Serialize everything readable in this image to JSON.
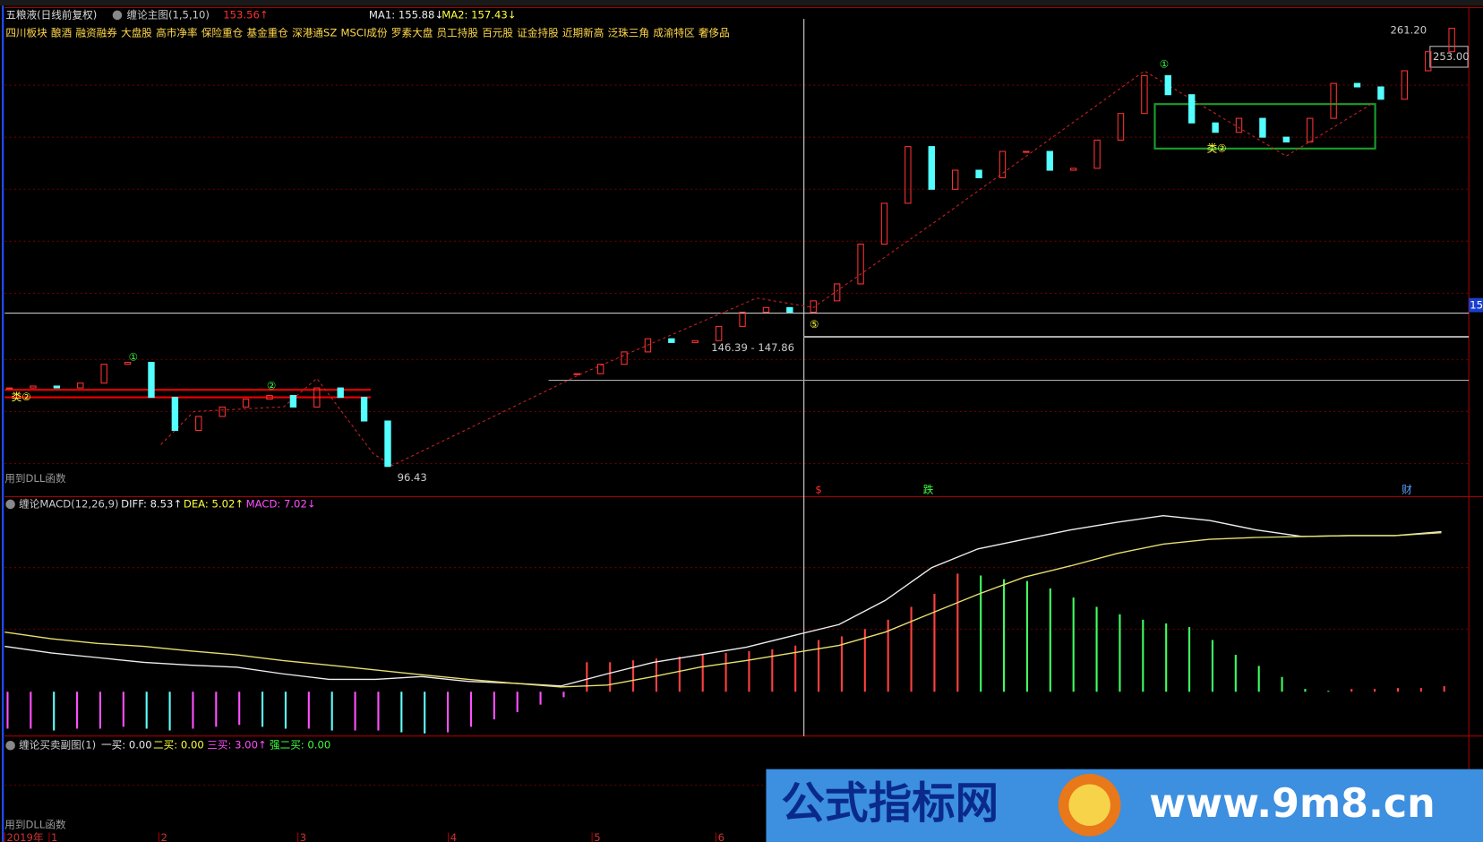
{
  "header": {
    "stock": "五粮液(日线前复权)",
    "indicator": "缠论主图(1,5,10)",
    "price": "153.56↑",
    "ma1": "MA1: 155.88↓",
    "ma2": "MA2: 157.43↓"
  },
  "tags": [
    "四川板块",
    "酿酒",
    "融资融券",
    "大盘股",
    "高市净率",
    "保险重仓",
    "基金重仓",
    "深港通SZ",
    "MSCI成份",
    "罗素大盘",
    "员工持股",
    "百元股",
    "证金持股",
    "近期新高",
    "泛珠三角",
    "成渝特区",
    "奢侈品"
  ],
  "price_pane": {
    "closes": [
      128.1,
      128.8,
      128.1,
      129.9,
      136.9,
      137.6,
      124.6,
      112.3,
      117.5,
      121.0,
      123.9,
      125.3,
      121.0,
      128.1,
      124.6,
      115.8,
      98.9,
      null,
      null,
      null,
      null,
      null,
      null,
      null,
      133.4,
      136.9,
      141.5,
      146.4,
      145.0,
      145.7,
      151.0,
      156.3,
      158.0,
      156.3,
      160.5,
      166.8,
      181.6,
      196.8,
      217.9,
      202.0,
      209.1,
      206.3,
      216.1,
      216.1,
      209.1,
      209.8,
      220.3,
      230.2,
      244.3,
      237.2,
      226.7,
      223.2,
      228.4,
      221.4,
      219.6,
      228.4,
      241.4,
      240.1,
      235.5,
      246.1,
      253.2,
      261.9
    ],
    "ylim": [
      88.7,
      268.9
    ],
    "labels": {
      "high": "261.20",
      "last": "253.00",
      "range": "146.39 - 147.86",
      "low": "96.43",
      "cursor": "15"
    },
    "events": [
      "$",
      "跌",
      "财"
    ],
    "markers": [
      "①",
      "②",
      "⑤",
      "①",
      "类②",
      "类②"
    ],
    "dll_note": "用到DLL函数"
  },
  "macd_pane": {
    "title": "缠论MACD(12,26,9)",
    "diff_label": "DIFF: 8.53↑",
    "dea_label": "DEA: 5.02↑",
    "macd_label": "MACD: 7.02↓",
    "diff": [
      2.46,
      2.1,
      1.85,
      1.59,
      1.44,
      1.33,
      0.97,
      0.67,
      0.67,
      0.82,
      0.56,
      0.46,
      0.31,
      0.97,
      1.59,
      2.0,
      2.41,
      3.03,
      3.64,
      4.95,
      6.72,
      7.74,
      8.26,
      8.77,
      9.18,
      9.54,
      9.28,
      8.77,
      8.41,
      8.46,
      8.46,
      8.67
    ],
    "dea": [
      3.23,
      2.87,
      2.62,
      2.46,
      2.21,
      2.0,
      1.69,
      1.44,
      1.18,
      0.92,
      0.67,
      0.46,
      0.26,
      0.36,
      0.82,
      1.33,
      1.69,
      2.1,
      2.51,
      3.23,
      4.26,
      5.28,
      6.21,
      6.82,
      7.49,
      8.0,
      8.26,
      8.36,
      8.41,
      8.46,
      8.46,
      8.62
    ],
    "macd": [
      -2.0,
      -2.0,
      -2.1,
      -2.0,
      -2.0,
      -1.9,
      -2.0,
      -2.1,
      -2.0,
      -1.9,
      -1.8,
      -1.9,
      -2.0,
      -2.0,
      -2.1,
      -2.1,
      -2.1,
      -2.2,
      -2.26,
      -2.2,
      -1.9,
      -1.5,
      -1.1,
      -0.7,
      -0.3,
      1.6,
      1.6,
      1.7,
      1.8,
      1.9,
      2.0,
      2.1,
      2.2,
      2.3,
      2.5,
      2.8,
      3.0,
      3.4,
      3.9,
      4.6,
      5.3,
      6.4,
      6.3,
      6.1,
      6.0,
      5.6,
      5.1,
      4.6,
      4.2,
      3.9,
      3.7,
      3.5,
      2.8,
      2.0,
      1.4,
      0.8,
      0.15,
      0.05,
      0.15,
      0.15,
      0.2,
      0.2,
      0.3
    ],
    "ylim": [
      -2.4,
      9.8
    ]
  },
  "sub_pane": {
    "title": "缠论买卖副图(1)",
    "labels": [
      "一买: 0.00",
      "二买: 0.00",
      "三买: 3.00↑",
      "强二买: 0.00"
    ],
    "dll_note": "用到DLL函数"
  },
  "time_axis": [
    "2019年",
    "1",
    "2",
    "3",
    "4",
    "5",
    "6"
  ],
  "watermark": {
    "name": "公式指标网",
    "url": "www.9m8.cn"
  }
}
